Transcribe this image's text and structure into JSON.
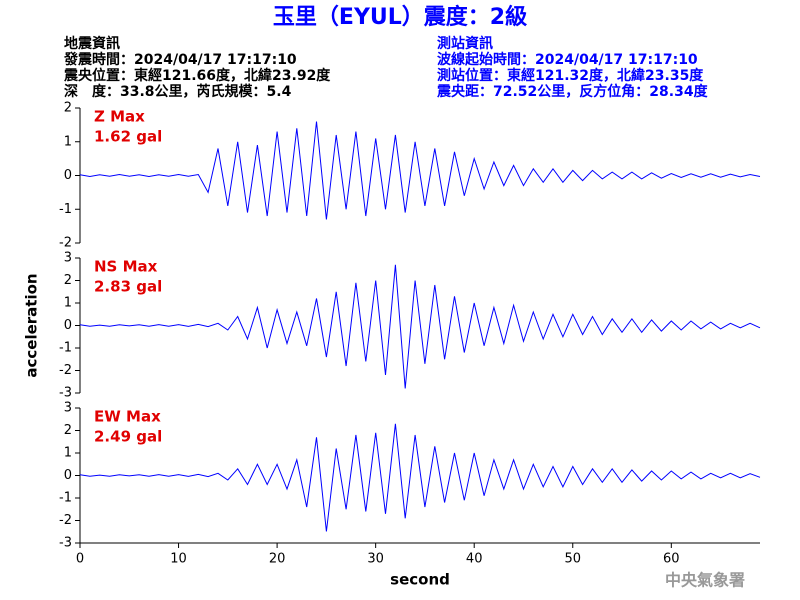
{
  "header": {
    "title": "玉里（EYUL）震度：2級",
    "left": [
      "地震資訊",
      "發震時間：2024/04/17 17:17:10",
      "震央位置：東經121.66度，北緯23.92度",
      "深　度：33.8公里，芮氏規模：5.4"
    ],
    "right": [
      "測站資訊",
      "波線起始時間：2024/04/17 17:17:10",
      "測站位置：東經121.32度，北緯23.35度",
      "震央距：72.52公里，反方位角：28.34度"
    ]
  },
  "footer": "中央氣象署",
  "chart_data": [
    {
      "type": "line",
      "annotations": [
        "Z Max",
        "1.62 gal"
      ],
      "color": "#0000ff",
      "x": [
        0,
        1,
        2,
        3,
        4,
        5,
        6,
        7,
        8,
        9,
        10,
        11,
        12,
        13,
        14,
        15,
        16,
        17,
        18,
        19,
        20,
        21,
        22,
        23,
        24,
        25,
        26,
        27,
        28,
        29,
        30,
        31,
        32,
        33,
        34,
        35,
        36,
        37,
        38,
        39,
        40,
        41,
        42,
        43,
        44,
        45,
        46,
        47,
        48,
        49,
        50,
        51,
        52,
        53,
        54,
        55,
        56,
        57,
        58,
        59,
        60,
        61,
        62,
        63,
        64,
        65,
        66,
        67,
        68,
        69
      ],
      "values": [
        0.02,
        -0.03,
        0.02,
        -0.02,
        0.03,
        -0.02,
        0.02,
        -0.03,
        0.02,
        -0.02,
        0.03,
        -0.02,
        0.03,
        -0.5,
        0.8,
        -0.9,
        1.0,
        -1.1,
        0.9,
        -1.2,
        1.3,
        -1.1,
        1.4,
        -1.2,
        1.6,
        -1.3,
        1.2,
        -1.0,
        1.3,
        -1.2,
        1.1,
        -1.0,
        1.2,
        -1.1,
        1.0,
        -0.9,
        0.8,
        -0.9,
        0.7,
        -0.6,
        0.5,
        -0.4,
        0.4,
        -0.3,
        0.3,
        -0.3,
        0.2,
        -0.2,
        0.2,
        -0.2,
        0.15,
        -0.15,
        0.15,
        -0.1,
        0.1,
        -0.1,
        0.1,
        -0.1,
        0.08,
        -0.08,
        0.06,
        -0.06,
        0.05,
        -0.05,
        0.05,
        -0.05,
        0.04,
        -0.04,
        0.03,
        -0.03
      ],
      "xlim": [
        0,
        69
      ],
      "ylim": [
        -2,
        2
      ],
      "yticks": [
        -2,
        -1,
        0,
        1,
        2
      ]
    },
    {
      "type": "line",
      "annotations": [
        "NS Max",
        "2.83 gal"
      ],
      "color": "#0000ff",
      "ylabel": "acceleration",
      "x": [
        0,
        1,
        2,
        3,
        4,
        5,
        6,
        7,
        8,
        9,
        10,
        11,
        12,
        13,
        14,
        15,
        16,
        17,
        18,
        19,
        20,
        21,
        22,
        23,
        24,
        25,
        26,
        27,
        28,
        29,
        30,
        31,
        32,
        33,
        34,
        35,
        36,
        37,
        38,
        39,
        40,
        41,
        42,
        43,
        44,
        45,
        46,
        47,
        48,
        49,
        50,
        51,
        52,
        53,
        54,
        55,
        56,
        57,
        58,
        59,
        60,
        61,
        62,
        63,
        64,
        65,
        66,
        67,
        68,
        69
      ],
      "values": [
        0.03,
        -0.03,
        0.02,
        -0.03,
        0.03,
        -0.02,
        0.03,
        -0.03,
        0.04,
        -0.03,
        0.04,
        -0.04,
        0.05,
        -0.05,
        0.1,
        -0.2,
        0.4,
        -0.6,
        0.8,
        -1.0,
        0.7,
        -0.8,
        0.6,
        -0.9,
        1.2,
        -1.4,
        1.5,
        -1.8,
        1.9,
        -1.6,
        2.0,
        -2.2,
        2.7,
        -2.8,
        2.0,
        -1.7,
        1.8,
        -1.5,
        1.3,
        -1.2,
        1.0,
        -0.9,
        0.8,
        -0.8,
        0.9,
        -0.7,
        0.6,
        -0.6,
        0.5,
        -0.5,
        0.5,
        -0.4,
        0.4,
        -0.4,
        0.3,
        -0.3,
        0.3,
        -0.3,
        0.25,
        -0.25,
        0.2,
        -0.2,
        0.2,
        -0.15,
        0.15,
        -0.15,
        0.1,
        -0.1,
        0.1,
        -0.1
      ],
      "xlim": [
        0,
        69
      ],
      "ylim": [
        -3,
        3
      ],
      "yticks": [
        -3,
        -2,
        -1,
        0,
        1,
        2,
        3
      ]
    },
    {
      "type": "line",
      "annotations": [
        "EW Max",
        "2.49 gal"
      ],
      "color": "#0000ff",
      "xlabel": "second",
      "x": [
        0,
        1,
        2,
        3,
        4,
        5,
        6,
        7,
        8,
        9,
        10,
        11,
        12,
        13,
        14,
        15,
        16,
        17,
        18,
        19,
        20,
        21,
        22,
        23,
        24,
        25,
        26,
        27,
        28,
        29,
        30,
        31,
        32,
        33,
        34,
        35,
        36,
        37,
        38,
        39,
        40,
        41,
        42,
        43,
        44,
        45,
        46,
        47,
        48,
        49,
        50,
        51,
        52,
        53,
        54,
        55,
        56,
        57,
        58,
        59,
        60,
        61,
        62,
        63,
        64,
        65,
        66,
        67,
        68,
        69
      ],
      "values": [
        0.03,
        -0.03,
        0.02,
        -0.03,
        0.03,
        -0.02,
        0.03,
        -0.03,
        0.04,
        -0.03,
        0.04,
        -0.04,
        0.05,
        -0.05,
        0.1,
        -0.2,
        0.3,
        -0.4,
        0.5,
        -0.4,
        0.5,
        -0.6,
        0.7,
        -1.4,
        1.7,
        -2.49,
        1.2,
        -1.5,
        1.8,
        -1.6,
        1.9,
        -1.7,
        2.3,
        -1.9,
        1.8,
        -1.4,
        1.3,
        -1.2,
        1.0,
        -1.1,
        1.0,
        -0.9,
        0.7,
        -0.6,
        0.7,
        -0.6,
        0.5,
        -0.5,
        0.4,
        -0.5,
        0.4,
        -0.4,
        0.3,
        -0.3,
        0.3,
        -0.3,
        0.25,
        -0.25,
        0.2,
        -0.2,
        0.2,
        -0.15,
        0.15,
        -0.15,
        0.1,
        -0.1,
        0.1,
        -0.1,
        0.08,
        -0.08
      ],
      "xlim": [
        0,
        69
      ],
      "ylim": [
        -3,
        3
      ],
      "yticks": [
        -3,
        -2,
        -1,
        0,
        1,
        2,
        3
      ],
      "xticks": [
        0,
        10,
        20,
        30,
        40,
        50,
        60
      ]
    }
  ]
}
